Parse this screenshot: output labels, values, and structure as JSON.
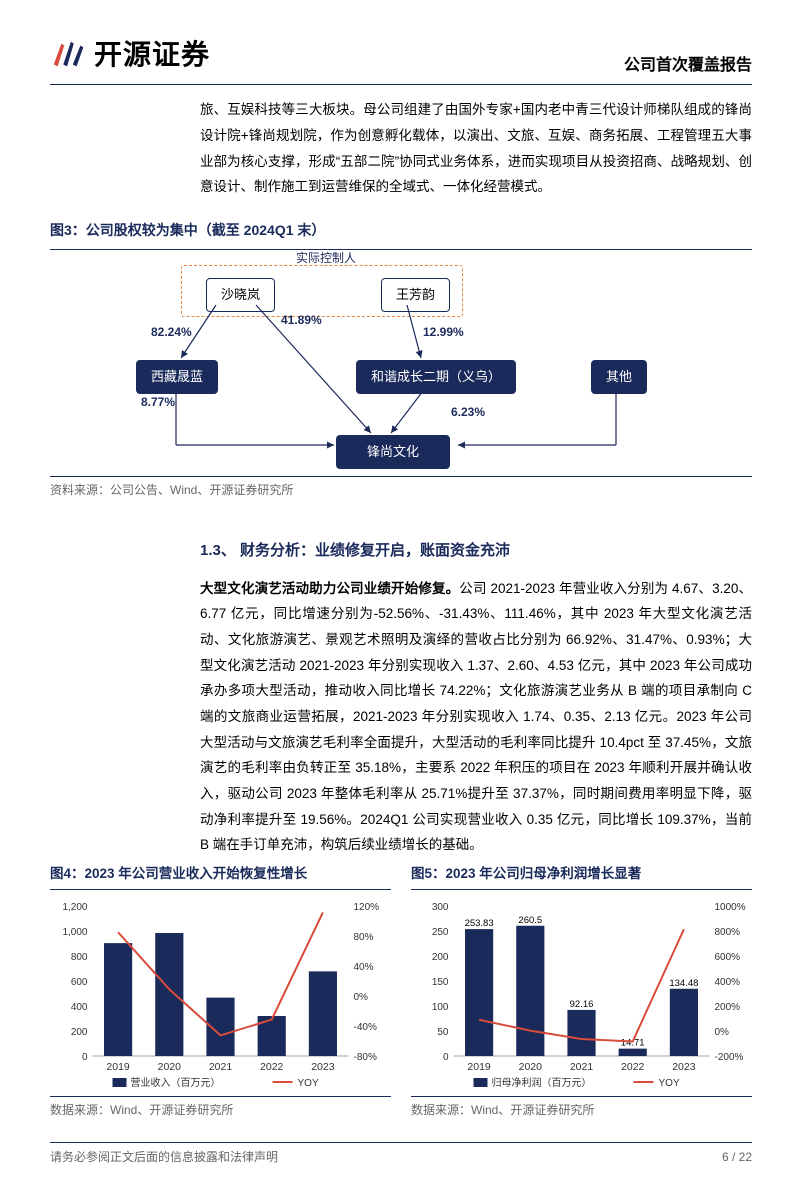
{
  "header": {
    "logo_text": "开源证券",
    "report_type": "公司首次覆盖报告"
  },
  "para1": "旅、互娱科技等三大板块。母公司组建了由国外专家+国内老中青三代设计师梯队组成的锋尚设计院+锋尚规划院，作为创意孵化载体，以演出、文旅、互娱、商务拓展、工程管理五大事业部为核心支撑，形成“五部二院”协同式业务体系，进而实现项目从投资招商、战略规划、创意设计、制作施工到运营维保的全域式、一体化经营模式。",
  "fig3": {
    "title": "图3：公司股权较为集中（截至 2024Q1 末）",
    "actual_controller": "实际控制人",
    "nodes": {
      "a": "沙晓岚",
      "b": "王芳韵",
      "c": "西藏晟蓝",
      "d": "和谐成长二期（义乌）",
      "e": "其他",
      "f": "锋尚文化"
    },
    "edges": {
      "a_c": "82.24%",
      "a_f": "41.89%",
      "b_d": "12.99%",
      "c_f": "8.77%",
      "d_f": "6.23%"
    },
    "source": "资料来源：公司公告、Wind、开源证券研究所"
  },
  "section13": {
    "heading": "1.3、 财务分析：业绩修复开启，账面资金充沛",
    "para_bold": "大型文化演艺活动助力公司业绩开始修复。",
    "para_rest": "公司 2021-2023 年营业收入分别为 4.67、3.20、6.77 亿元，同比增速分别为-52.56%、-31.43%、111.46%，其中 2023 年大型文化演艺活动、文化旅游演艺、景观艺术照明及演绎的营收占比分别为 66.92%、31.47%、0.93%；大型文化演艺活动 2021-2023 年分别实现收入 1.37、2.60、4.53 亿元，其中 2023 年公司成功承办多项大型活动，推动收入同比增长 74.22%；文化旅游演艺业务从 B 端的项目承制向 C 端的文旅商业运营拓展，2021-2023 年分别实现收入 1.74、0.35、2.13 亿元。2023 年公司大型活动与文旅演艺毛利率全面提升，大型活动的毛利率同比提升 10.4pct 至 37.45%，文旅演艺的毛利率由负转正至 35.18%，主要系 2022 年积压的项目在 2023 年顺利开展并确认收入，驱动公司 2023 年整体毛利率从 25.71%提升至 37.37%，同时期间费用率明显下降，驱动净利率提升至 19.56%。2024Q1 公司实现营业收入 0.35 亿元，同比增长 109.37%，当前 B 端在手订单充沛，构筑后续业绩增长的基础。"
  },
  "fig4": {
    "title": "图4：2023 年公司营业收入开始恢复性增长",
    "type": "bar+line",
    "categories": [
      "2019",
      "2020",
      "2021",
      "2022",
      "2023"
    ],
    "bar_series": {
      "label": "营业收入（百万元）",
      "values": [
        903,
        984,
        467,
        320,
        677
      ],
      "color": "#1a2a5a"
    },
    "line_series": {
      "label": "YOY",
      "values": [
        85,
        9,
        -52.56,
        -31.43,
        111.46
      ],
      "color": "#d94b3a"
    },
    "y_left": {
      "min": 0,
      "max": 1200,
      "step": 200,
      "ticks": [
        0,
        200,
        400,
        600,
        800,
        1000,
        1200
      ]
    },
    "y_right": {
      "min": -80,
      "max": 120,
      "step": 40,
      "ticks": [
        -80,
        -40,
        0,
        40,
        80,
        120
      ],
      "suffix": "%"
    },
    "background": "#ffffff",
    "source": "数据来源：Wind、开源证券研究所"
  },
  "fig5": {
    "title": "图5：2023 年公司归母净利润增长显著",
    "type": "bar+line",
    "categories": [
      "2019",
      "2020",
      "2021",
      "2022",
      "2023"
    ],
    "bar_series": {
      "label": "归母净利润（百万元）",
      "values": [
        253.83,
        260.5,
        92.16,
        14.71,
        134.48
      ],
      "color": "#1a2a5a",
      "show_labels": true
    },
    "line_series": {
      "label": "YOY",
      "values": [
        90,
        3,
        -64,
        -84,
        814
      ],
      "color": "#d94b3a"
    },
    "y_left": {
      "min": 0,
      "max": 300,
      "step": 50,
      "ticks": [
        0,
        50,
        100,
        150,
        200,
        250,
        300
      ]
    },
    "y_right": {
      "min": -200,
      "max": 1000,
      "step": 200,
      "ticks": [
        -200,
        0,
        200,
        400,
        600,
        800,
        1000
      ],
      "suffix": "%"
    },
    "background": "#ffffff",
    "source": "数据来源：Wind、开源证券研究所"
  },
  "footer": {
    "left": "请务必参阅正文后面的信息披露和法律声明",
    "right": "6 / 22"
  },
  "legend": {
    "yoy": "YOY"
  }
}
